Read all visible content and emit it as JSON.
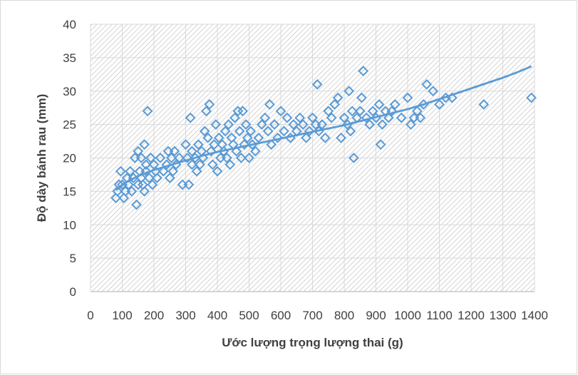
{
  "chart_data": {
    "type": "scatter",
    "title": "",
    "xlabel": "Ước lượng trọng lượng thai (g)",
    "ylabel": "Độ dày bánh rau (mm)",
    "xlim": [
      0,
      1400
    ],
    "ylim": [
      0,
      40
    ],
    "xticks": [
      0,
      100,
      200,
      300,
      400,
      500,
      600,
      700,
      800,
      900,
      1000,
      1100,
      1200,
      1300,
      1400
    ],
    "yticks": [
      0,
      5,
      10,
      15,
      20,
      25,
      30,
      35,
      40
    ],
    "grid": true,
    "legend": "none",
    "marker": "diamond-open",
    "color": "#5B9BD5",
    "plot_background": "hatched-gray",
    "trendline": {
      "type": "logarithmic",
      "x": [
        80,
        100,
        150,
        200,
        250,
        300,
        350,
        400,
        450,
        500,
        550,
        600,
        650,
        700,
        750,
        800,
        850,
        900,
        950,
        1000,
        1050,
        1100,
        1150,
        1200,
        1250,
        1300,
        1350,
        1390
      ],
      "y": [
        15.2,
        16.0,
        17.3,
        18.2,
        18.9,
        19.6,
        20.3,
        20.9,
        21.4,
        21.9,
        22.4,
        22.9,
        23.4,
        23.9,
        24.4,
        24.9,
        25.5,
        26.1,
        26.7,
        27.3,
        28.0,
        28.8,
        29.6,
        30.4,
        31.2,
        32.0,
        32.9,
        33.7
      ]
    },
    "series": [
      {
        "x": [
          80,
          85,
          90,
          95,
          100,
          105,
          110,
          115,
          120,
          125,
          130,
          135,
          140,
          145,
          150,
          150,
          155,
          160,
          160,
          165,
          170,
          170,
          175,
          175,
          180,
          185,
          190,
          195,
          200,
          205,
          210,
          220,
          230,
          240,
          245,
          250,
          255,
          260,
          265,
          270,
          280,
          290,
          300,
          305,
          310,
          315,
          320,
          320,
          330,
          335,
          340,
          345,
          350,
          355,
          360,
          365,
          370,
          375,
          380,
          385,
          390,
          395,
          400,
          405,
          410,
          415,
          420,
          425,
          430,
          435,
          440,
          445,
          450,
          455,
          460,
          465,
          470,
          475,
          480,
          485,
          490,
          495,
          500,
          505,
          510,
          520,
          530,
          540,
          550,
          560,
          565,
          570,
          580,
          590,
          600,
          610,
          620,
          630,
          640,
          650,
          660,
          670,
          680,
          690,
          700,
          710,
          715,
          720,
          730,
          740,
          750,
          760,
          770,
          780,
          790,
          800,
          810,
          815,
          820,
          825,
          830,
          840,
          850,
          855,
          860,
          870,
          880,
          890,
          900,
          910,
          915,
          920,
          930,
          940,
          950,
          960,
          980,
          1000,
          1010,
          1020,
          1030,
          1040,
          1050,
          1060,
          1080,
          1100,
          1120,
          1140,
          1240,
          1390
        ],
        "y": [
          14,
          15,
          16,
          18,
          16,
          14,
          15,
          17,
          16,
          18,
          15,
          17,
          20,
          13,
          16,
          21,
          18,
          17,
          20,
          16,
          15,
          22,
          19,
          18,
          27,
          17,
          20,
          16,
          19,
          18,
          17,
          20,
          18,
          19,
          21,
          17,
          20,
          18,
          21,
          19,
          20,
          16,
          22,
          20,
          16,
          26,
          19,
          21,
          20,
          18,
          22,
          19,
          21,
          20,
          24,
          27,
          23,
          28,
          21,
          19,
          22,
          25,
          18,
          23,
          20,
          22,
          21,
          24,
          20,
          25,
          19,
          23,
          22,
          26,
          21,
          27,
          24,
          20,
          27,
          22,
          25,
          23,
          20,
          24,
          22,
          21,
          23,
          25,
          26,
          24,
          28,
          22,
          25,
          23,
          27,
          24,
          26,
          23,
          25,
          24,
          26,
          25,
          23,
          24,
          26,
          25,
          31,
          24,
          25,
          23,
          27,
          26,
          28,
          29,
          23,
          26,
          25,
          30,
          24,
          27,
          20,
          26,
          27,
          29,
          33,
          26,
          25,
          27,
          26,
          28,
          22,
          25,
          27,
          26,
          27,
          28,
          26,
          29,
          25,
          26,
          27,
          26,
          28,
          31,
          30,
          28,
          29,
          29,
          28,
          29
        ]
      }
    ]
  }
}
